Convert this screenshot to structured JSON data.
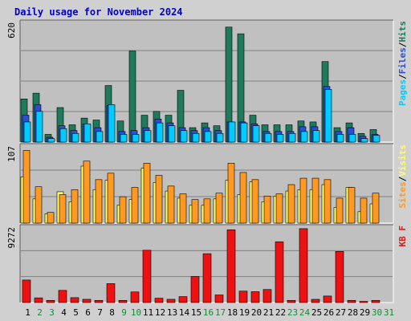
{
  "title": "Daily usage for November 2024",
  "colors": {
    "hits": "#1f7a5c",
    "files": "#2a4fd6",
    "pages": "#00ccff",
    "visits": "#ffff66",
    "sites": "#ff9922",
    "kbytes": "#ee1111",
    "weekday_label": "#000000",
    "weekend_label": "#1a8a3a",
    "panel_bg": "#c0c0c0",
    "frame_bg": "#d0d0d0",
    "grid": "#808080"
  },
  "chart_data": [
    {
      "type": "bar",
      "panel": "top",
      "ymax_label": "620",
      "ylim": [
        0,
        620
      ],
      "legend": [
        {
          "text": "Pages",
          "color": "#00ccff"
        },
        {
          "text": "/",
          "color": "#000000"
        },
        {
          "text": "Files",
          "color": "#2a4fd6"
        },
        {
          "text": "/",
          "color": "#000000"
        },
        {
          "text": "Hits",
          "color": "#1f7a5c"
        }
      ],
      "categories": [
        "1",
        "2",
        "3",
        "4",
        "5",
        "6",
        "7",
        "8",
        "9",
        "10",
        "11",
        "12",
        "13",
        "14",
        "15",
        "16",
        "17",
        "18",
        "19",
        "20",
        "21",
        "22",
        "23",
        "24",
        "25",
        "26",
        "27",
        "28",
        "29",
        "30",
        "31"
      ],
      "series": [
        {
          "name": "Hits",
          "values": [
            225,
            255,
            40,
            180,
            90,
            125,
            115,
            295,
            110,
            475,
            140,
            160,
            140,
            270,
            75,
            100,
            85,
            600,
            565,
            140,
            90,
            90,
            90,
            110,
            105,
            420,
            75,
            100,
            45,
            65,
            0
          ]
        },
        {
          "name": "Files",
          "values": [
            140,
            195,
            25,
            85,
            60,
            95,
            75,
            190,
            55,
            60,
            75,
            120,
            100,
            75,
            60,
            75,
            60,
            105,
            105,
            95,
            55,
            55,
            55,
            80,
            80,
            290,
            55,
            75,
            30,
            40,
            0
          ]
        },
        {
          "name": "Pages",
          "values": [
            105,
            160,
            18,
            70,
            45,
            95,
            55,
            195,
            40,
            40,
            60,
            100,
            85,
            60,
            45,
            55,
            45,
            105,
            100,
            85,
            45,
            40,
            45,
            55,
            60,
            275,
            40,
            40,
            18,
            35,
            0
          ]
        }
      ]
    },
    {
      "type": "bar",
      "panel": "middle",
      "ymax_label": "107",
      "ylim": [
        0,
        107
      ],
      "legend": [
        {
          "text": "Sites",
          "color": "#ff9922"
        },
        {
          "text": "/",
          "color": "#000000"
        },
        {
          "text": "Visits",
          "color": "#ffff66"
        }
      ],
      "categories": [
        "1",
        "2",
        "3",
        "4",
        "5",
        "6",
        "7",
        "8",
        "9",
        "10",
        "11",
        "12",
        "13",
        "14",
        "15",
        "16",
        "17",
        "18",
        "19",
        "20",
        "21",
        "22",
        "23",
        "24",
        "25",
        "26",
        "27",
        "28",
        "29",
        "30",
        "31"
      ],
      "series": [
        {
          "name": "Visits",
          "values": [
            65,
            34,
            13,
            44,
            30,
            80,
            47,
            60,
            25,
            33,
            77,
            57,
            45,
            35,
            25,
            25,
            34,
            60,
            40,
            58,
            30,
            38,
            45,
            47,
            47,
            54,
            22,
            50,
            16,
            27,
            0
          ]
        },
        {
          "name": "Sites",
          "values": [
            102,
            51,
            15,
            40,
            47,
            87,
            61,
            70,
            37,
            50,
            84,
            67,
            52,
            41,
            33,
            34,
            42,
            84,
            71,
            61,
            38,
            41,
            54,
            63,
            63,
            61,
            35,
            50,
            35,
            42,
            0
          ]
        }
      ]
    },
    {
      "type": "bar",
      "panel": "bottom",
      "ymax_label": "9272",
      "ylim": [
        0,
        9272
      ],
      "legend": [
        {
          "text": "KB F",
          "color": "#ee1111"
        }
      ],
      "categories": [
        "1",
        "2",
        "3",
        "4",
        "5",
        "6",
        "7",
        "8",
        "9",
        "10",
        "11",
        "12",
        "13",
        "14",
        "15",
        "16",
        "17",
        "18",
        "19",
        "20",
        "21",
        "22",
        "23",
        "24",
        "25",
        "26",
        "27",
        "28",
        "29",
        "30",
        "31"
      ],
      "series": [
        {
          "name": "KB F",
          "values": [
            2800,
            580,
            270,
            1510,
            610,
            405,
            270,
            2350,
            270,
            1320,
            6500,
            540,
            405,
            740,
            3240,
            6070,
            945,
            9040,
            1420,
            1350,
            1620,
            7550,
            270,
            9180,
            400,
            810,
            6350,
            270,
            140,
            270,
            0
          ]
        }
      ]
    }
  ],
  "x_labels": [
    {
      "text": "1",
      "weekend": false
    },
    {
      "text": "2",
      "weekend": true
    },
    {
      "text": "3",
      "weekend": true
    },
    {
      "text": "4",
      "weekend": false
    },
    {
      "text": "5",
      "weekend": false
    },
    {
      "text": "6",
      "weekend": false
    },
    {
      "text": "7",
      "weekend": false
    },
    {
      "text": "8",
      "weekend": false
    },
    {
      "text": "9",
      "weekend": true
    },
    {
      "text": "10",
      "weekend": true
    },
    {
      "text": "11",
      "weekend": false
    },
    {
      "text": "12",
      "weekend": false
    },
    {
      "text": "13",
      "weekend": false
    },
    {
      "text": "14",
      "weekend": false
    },
    {
      "text": "15",
      "weekend": false
    },
    {
      "text": "16",
      "weekend": true
    },
    {
      "text": "17",
      "weekend": true
    },
    {
      "text": "18",
      "weekend": false
    },
    {
      "text": "19",
      "weekend": false
    },
    {
      "text": "20",
      "weekend": false
    },
    {
      "text": "21",
      "weekend": false
    },
    {
      "text": "22",
      "weekend": false
    },
    {
      "text": "23",
      "weekend": true
    },
    {
      "text": "24",
      "weekend": true
    },
    {
      "text": "25",
      "weekend": false
    },
    {
      "text": "26",
      "weekend": false
    },
    {
      "text": "27",
      "weekend": false
    },
    {
      "text": "28",
      "weekend": false
    },
    {
      "text": "29",
      "weekend": false
    },
    {
      "text": "30",
      "weekend": true
    },
    {
      "text": "31",
      "weekend": true
    }
  ]
}
